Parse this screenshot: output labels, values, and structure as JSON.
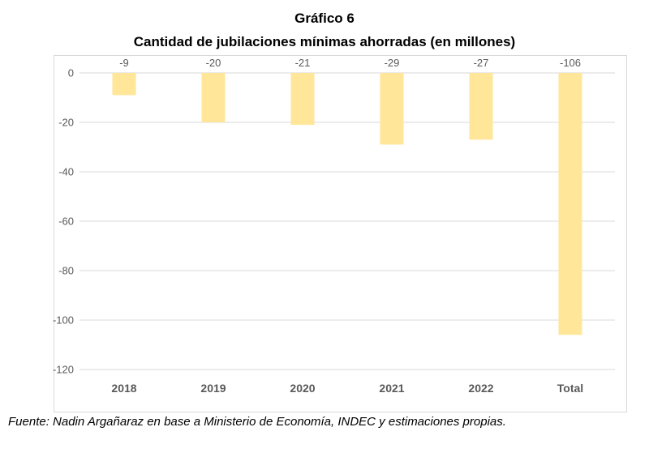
{
  "chart_data": {
    "type": "bar",
    "title": "Gráfico 6",
    "subtitle": "Cantidad de jubilaciones mínimas ahorradas (en millones)",
    "categories": [
      "2018",
      "2019",
      "2020",
      "2021",
      "2022",
      "Total"
    ],
    "values": [
      -9,
      -20,
      -21,
      -29,
      -27,
      -106
    ],
    "data_labels": [
      "-9",
      "-20",
      "-21",
      "-29",
      "-27",
      "-106"
    ],
    "ylim": [
      -120,
      0
    ],
    "yticks": [
      0,
      -20,
      -40,
      -60,
      -80,
      -100,
      -120
    ],
    "xlabel": "",
    "ylabel": "",
    "grid": true,
    "legend": "none",
    "bar_color": "#ffe699",
    "source": "Fuente: Nadin Argañaraz en base a Ministerio de Economía, INDEC y estimaciones propias."
  }
}
